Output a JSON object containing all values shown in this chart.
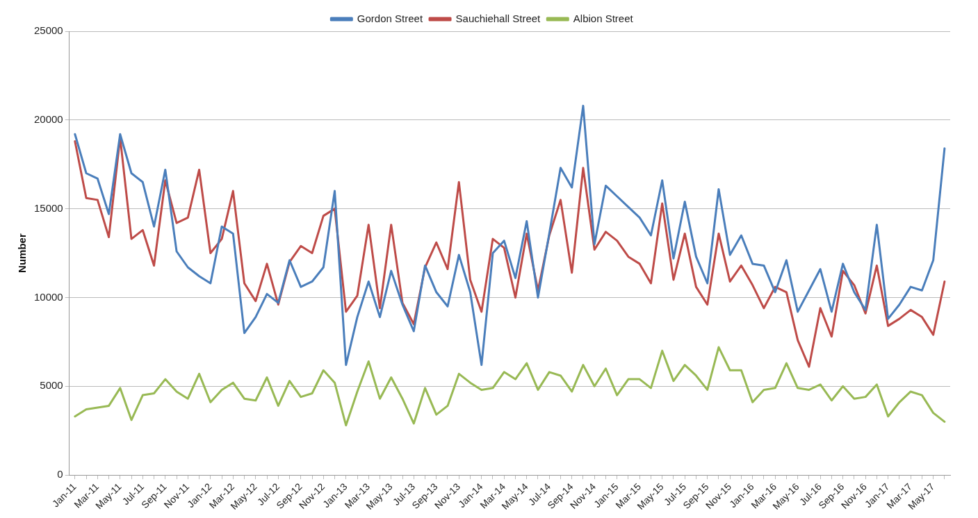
{
  "chart_data": {
    "type": "line",
    "ylabel": "Number",
    "legend": "top",
    "grid": "y",
    "line_style": "solid",
    "marker": "none",
    "categories": [
      "Jan-11",
      null,
      "Mar-11",
      null,
      "May-11",
      null,
      "Jul-11",
      null,
      "Sep-11",
      null,
      "Nov-11",
      null,
      "Jan-12",
      null,
      "Mar-12",
      null,
      "May-12",
      null,
      "Jul-12",
      null,
      "Sep-12",
      null,
      "Nov-12",
      null,
      "Jan-13",
      null,
      "Mar-13",
      null,
      "May-13",
      null,
      "Jul-13",
      null,
      "Sep-13",
      null,
      "Nov-13",
      null,
      "Jan-14",
      null,
      "Mar-14",
      null,
      "May-14",
      null,
      "Jul-14",
      null,
      "Sep-14",
      null,
      "Nov-14",
      null,
      "Jan-15",
      null,
      "Mar-15",
      null,
      "May-15",
      null,
      "Jul-15",
      null,
      "Sep-15",
      null,
      "Nov-15",
      null,
      "Jan-16",
      null,
      "Mar-16",
      null,
      "May-16",
      null,
      "Jul-16",
      null,
      "Sep-16",
      null,
      "Nov-16",
      null,
      "Jan-17",
      null,
      "Mar-17",
      null,
      "May-17",
      null
    ],
    "ylim": [
      0,
      25000
    ],
    "yticks": [
      0,
      5000,
      10000,
      15000,
      20000,
      25000
    ],
    "series": [
      {
        "name": "Gordon Street",
        "color": "#4a7ebb",
        "values": [
          19200,
          17000,
          16700,
          14700,
          19200,
          17000,
          16500,
          14000,
          17200,
          12600,
          11700,
          11200,
          10800,
          14000,
          13600,
          8000,
          8900,
          10200,
          9700,
          12100,
          10600,
          10900,
          11700,
          16000,
          6200,
          8900,
          10900,
          8900,
          11500,
          9600,
          8100,
          11800,
          10300,
          9500,
          12400,
          10300,
          6200,
          12500,
          13200,
          11100,
          14300,
          10000,
          13600,
          17300,
          16200,
          20800,
          13000,
          16300,
          15700,
          15100,
          14500,
          13500,
          16600,
          12200,
          15400,
          12300,
          10800,
          16100,
          12400,
          13500,
          11900,
          11800,
          10300,
          12100,
          9200,
          10400,
          11600,
          9200,
          11900,
          10300,
          9300,
          14100,
          8800,
          9600,
          10600,
          10400,
          12100,
          18400
        ]
      },
      {
        "name": "Sauchiehall Street",
        "color": "#be4b48",
        "values": [
          18800,
          15600,
          15500,
          13400,
          19000,
          13300,
          13800,
          11800,
          16600,
          14200,
          14500,
          17200,
          12500,
          13300,
          16000,
          10800,
          9800,
          11900,
          9600,
          12000,
          12900,
          12500,
          14600,
          15000,
          9200,
          10100,
          14100,
          9400,
          14100,
          9700,
          8500,
          11700,
          13100,
          11600,
          16500,
          11000,
          9200,
          13300,
          12800,
          10000,
          13600,
          10400,
          13500,
          15500,
          11400,
          17300,
          12700,
          13700,
          13200,
          12300,
          11900,
          10800,
          15300,
          11000,
          13600,
          10600,
          9600,
          13600,
          10900,
          11800,
          10700,
          9400,
          10600,
          10300,
          7600,
          6100,
          9400,
          7800,
          11500,
          10700,
          9100,
          11800,
          8400,
          8800,
          9300,
          8900,
          7900,
          10900
        ]
      },
      {
        "name": "Albion Street",
        "color": "#98b954",
        "values": [
          3300,
          3700,
          3800,
          3900,
          4900,
          3100,
          4500,
          4600,
          5400,
          4700,
          4300,
          5700,
          4100,
          4800,
          5200,
          4300,
          4200,
          5500,
          3900,
          5300,
          4400,
          4600,
          5900,
          5200,
          2800,
          4700,
          6400,
          4300,
          5500,
          4300,
          2900,
          4900,
          3400,
          3900,
          5700,
          5200,
          4800,
          4900,
          5800,
          5400,
          6300,
          4800,
          5800,
          5600,
          4700,
          6200,
          5000,
          6000,
          4500,
          5400,
          5400,
          4900,
          7000,
          5300,
          6200,
          5600,
          4800,
          7200,
          5900,
          5900,
          4100,
          4800,
          4900,
          6300,
          4900,
          4800,
          5100,
          4200,
          5000,
          4300,
          4400,
          5100,
          3300,
          4100,
          4700,
          4500,
          3500,
          3000
        ]
      }
    ]
  }
}
